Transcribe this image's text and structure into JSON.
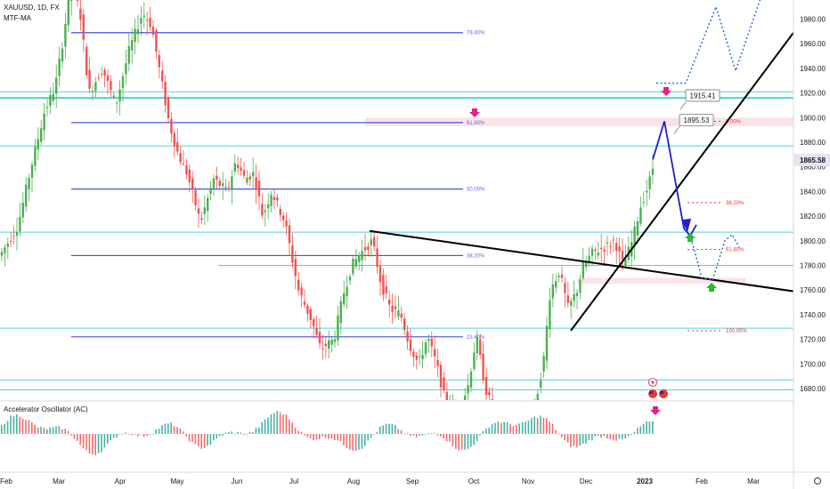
{
  "header": {
    "symbol_line": "XAUUSD, 1D, FX",
    "indicator_line": "MTF-MA",
    "oscillator_label": "Accelerator Oscillator (AC)"
  },
  "chart_data": {
    "type": "candlestick",
    "symbol": "XAUUSD",
    "timeframe": "1D",
    "ylim": [
      1665,
      2000
    ],
    "y_ticks": [
      1680,
      1700,
      1720,
      1740,
      1760,
      1780,
      1800,
      1820,
      1840,
      1860,
      1880,
      1900,
      1920,
      1940,
      1960,
      1980
    ],
    "x_ticks": [
      {
        "label": "Feb",
        "bold": false
      },
      {
        "label": "Mar",
        "bold": false
      },
      {
        "label": "Apr",
        "bold": false
      },
      {
        "label": "May",
        "bold": false
      },
      {
        "label": "Jun",
        "bold": false
      },
      {
        "label": "Jul",
        "bold": false
      },
      {
        "label": "Aug",
        "bold": false
      },
      {
        "label": "Sep",
        "bold": false
      },
      {
        "label": "Oct",
        "bold": false
      },
      {
        "label": "Nov",
        "bold": false
      },
      {
        "label": "Dec",
        "bold": false
      },
      {
        "label": "2023",
        "bold": true
      },
      {
        "label": "Feb",
        "bold": false
      },
      {
        "label": "Mar",
        "bold": false
      }
    ],
    "price_labels": [
      {
        "value": 1915.41,
        "text": "1915.41"
      },
      {
        "value": 1895.53,
        "text": "1895.53"
      }
    ],
    "last_price": {
      "value": 1865.58,
      "text": "1865.58"
    },
    "fib_left": [
      {
        "label": "78.60%",
        "price": 1969
      },
      {
        "label": "61.80%",
        "price": 1896
      },
      {
        "label": "50.00%",
        "price": 1842
      },
      {
        "label": "38.20%",
        "price": 1788
      },
      {
        "label": "23.60%",
        "price": 1722
      }
    ],
    "fib_right": [
      {
        "label": "0.00%",
        "price": 1897
      },
      {
        "label": "38.20%",
        "price": 1831
      },
      {
        "label": "61.80%",
        "price": 1793
      },
      {
        "label": "100.00%",
        "price": 1727
      }
    ],
    "horizontal_levels": [
      1921,
      1916,
      1877,
      1807,
      1780,
      1729,
      1687,
      1679
    ],
    "colors": {
      "up": "#26a69a",
      "up_candle": "#4caf50",
      "down": "#ef5350",
      "fib_left_line": "#3f51e8",
      "fib_left_text": "#5c6bf0",
      "fib_right": "#e53935",
      "level": "#4dd0d6",
      "trendline": "#000000",
      "projection_solid": "#2020c8",
      "projection_dotted": "#2e6fd0",
      "zone": "#f8cdd5",
      "marker_down": "#e91e8c",
      "marker_up": "#2eb82e"
    },
    "oscillator": {
      "name": "Accelerator Oscillator (AC)"
    }
  }
}
